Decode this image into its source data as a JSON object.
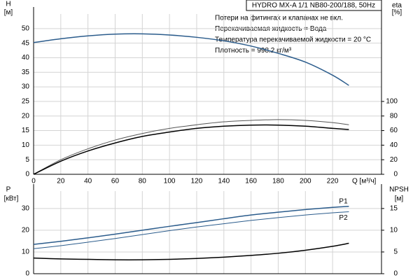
{
  "chart_data": [
    {
      "type": "line",
      "title": "HYDRO MX-A 1/1 NB80-200/188, 50Hz",
      "annotations": [
        "Потери на фитингах и клапанах не вкл.",
        "Перекачиваемая жидкость = Вода",
        "Температура перекачиваемой жидкости = 20 °C",
        "Плотность = 998.2 кг/м³"
      ],
      "y_label": "H",
      "y_unit": "[м]",
      "y2_label": "eta",
      "y2_unit": "[%]",
      "x_label": "Q [м³/ч]",
      "x": [
        0,
        20,
        40,
        60,
        80,
        100,
        120,
        140,
        160,
        180,
        200,
        220,
        232
      ],
      "xlim": [
        0,
        256
      ],
      "xticks": [
        0,
        20,
        40,
        60,
        80,
        100,
        120,
        140,
        160,
        180,
        200,
        220
      ],
      "ylim": [
        0,
        55
      ],
      "yticks": [
        0,
        5,
        10,
        15,
        20,
        25,
        30,
        35,
        40,
        45,
        50
      ],
      "y2lim": [
        0,
        220
      ],
      "y2ticks": [
        0,
        20,
        40,
        60,
        80,
        100
      ],
      "grid": true,
      "series": [
        {
          "color": "#2b5c8c",
          "values": [
            45.2,
            46.5,
            47.5,
            48.1,
            48.2,
            47.8,
            47,
            45.8,
            44,
            41.5,
            38.5,
            34,
            30.5
          ]
        },
        {
          "color": "#555555",
          "axis": "y2",
          "values": [
            0,
            20,
            35,
            47,
            56,
            63,
            68,
            72,
            74,
            75,
            74,
            71,
            68
          ]
        },
        {
          "color": "#000000",
          "axis": "y2",
          "values": [
            0,
            18,
            32,
            43,
            52,
            58,
            63,
            66,
            67.5,
            67.5,
            66,
            63,
            61.5
          ]
        }
      ]
    },
    {
      "type": "line",
      "y_label": "P",
      "y_unit": "[кВт]",
      "y2_label": "NPSH",
      "y2_unit": "[м]",
      "x": [
        0,
        20,
        40,
        60,
        80,
        100,
        120,
        140,
        160,
        180,
        200,
        220,
        232
      ],
      "xlim": [
        0,
        256
      ],
      "ylim": [
        0,
        38
      ],
      "yticks": [
        0,
        10,
        20,
        30
      ],
      "y2lim": [
        0,
        19
      ],
      "y2ticks": [
        0,
        5,
        10,
        15
      ],
      "grid": true,
      "series": [
        {
          "name": "P1",
          "color": "#2b5c8c",
          "values": [
            13.5,
            14.9,
            16.5,
            18.2,
            20,
            21.8,
            23.5,
            25.3,
            27,
            28.3,
            29.5,
            30.5,
            31
          ]
        },
        {
          "name": "P2",
          "color": "#2b5c8c",
          "values": [
            11.5,
            12.9,
            14.5,
            16.2,
            18,
            19.8,
            21.5,
            23,
            24.5,
            25.8,
            27,
            28,
            28.5
          ]
        },
        {
          "color": "#000000",
          "axis": "y2",
          "values": [
            3.6,
            3.4,
            3.3,
            3.2,
            3.2,
            3.3,
            3.5,
            3.8,
            4.2,
            4.7,
            5.4,
            6.3,
            7.0
          ]
        }
      ]
    }
  ]
}
